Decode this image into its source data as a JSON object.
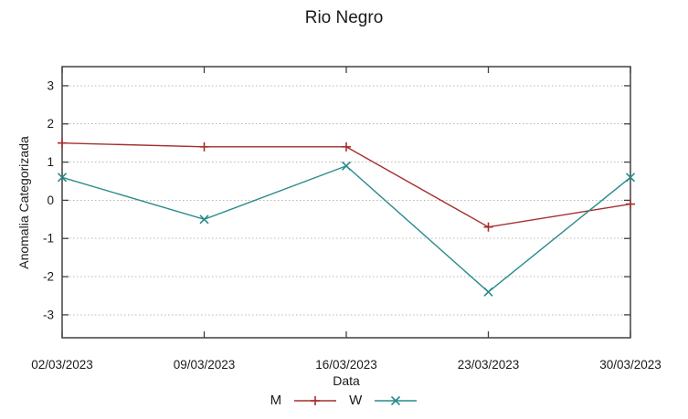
{
  "chart_data": {
    "type": "line",
    "title": "Rio Negro",
    "xlabel": "Data",
    "ylabel": "Anomalia Categorizada",
    "categories": [
      "02/03/2023",
      "09/03/2023",
      "16/03/2023",
      "23/03/2023",
      "30/03/2023"
    ],
    "series": [
      {
        "name": "M",
        "color": "#a52d2d",
        "marker": "plus",
        "values": [
          1.5,
          1.4,
          1.4,
          -0.7,
          -0.1
        ]
      },
      {
        "name": "W",
        "color": "#2a8a8a",
        "marker": "cross",
        "values": [
          0.6,
          -0.5,
          0.9,
          -2.4,
          0.6
        ]
      }
    ],
    "yticks": [
      -3,
      -2,
      -1,
      0,
      1,
      2,
      3
    ],
    "ylim": [
      -3.6,
      3.5
    ],
    "grid": "horizontal-dotted",
    "legend_position": "bottom-center"
  },
  "colors": {
    "background": "#ffffff",
    "border": "#404040",
    "grid": "#b8b8b8",
    "text": "#1a1a1a",
    "series_m": "#a52d2d",
    "series_w": "#2a8a8a"
  }
}
